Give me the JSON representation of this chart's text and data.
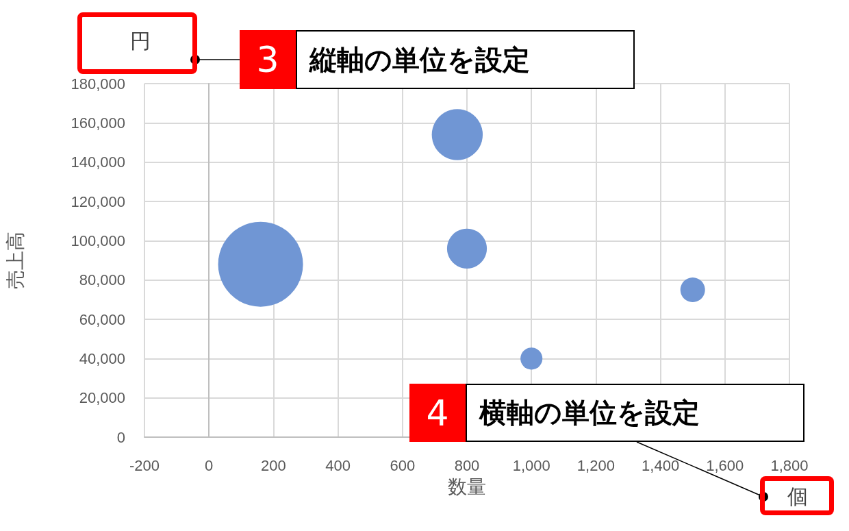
{
  "chart_data": {
    "type": "bubble",
    "xlabel": "数量",
    "ylabel": "売上高",
    "x": [
      160,
      770,
      800,
      1000,
      1500
    ],
    "values": [
      88000,
      154000,
      96000,
      40000,
      75000
    ],
    "sizes": [
      1,
      0.36,
      0.22,
      0.067,
      0.084
    ],
    "color": "#7096d4",
    "xlim": [
      -200,
      1800
    ],
    "xticks": [
      -200,
      0,
      200,
      400,
      600,
      800,
      {
        "value": 1000,
        "label": "1,000"
      },
      {
        "value": 1200,
        "label": "1,200"
      },
      {
        "value": 1400,
        "label": "1,400"
      },
      {
        "value": 1600,
        "label": "1,600"
      },
      {
        "value": 1800,
        "label": "1,800"
      }
    ],
    "ylim": [
      0,
      180000
    ],
    "yticks": [
      0,
      {
        "value": 20000,
        "label": "20,000"
      },
      {
        "value": 40000,
        "label": "40,000"
      },
      {
        "value": 60000,
        "label": "60,000"
      },
      {
        "value": 80000,
        "label": "80,000"
      },
      {
        "value": 100000,
        "label": "100,000"
      },
      {
        "value": 120000,
        "label": "120,000"
      },
      {
        "value": 140000,
        "label": "140,000"
      },
      {
        "value": 160000,
        "label": "160,000"
      },
      {
        "value": 180000,
        "label": "180,000"
      }
    ],
    "grid": true,
    "annotations": [
      "円",
      "個",
      "3",
      "縦軸の単位を設定",
      "4",
      "横軸の単位を設定"
    ]
  }
}
